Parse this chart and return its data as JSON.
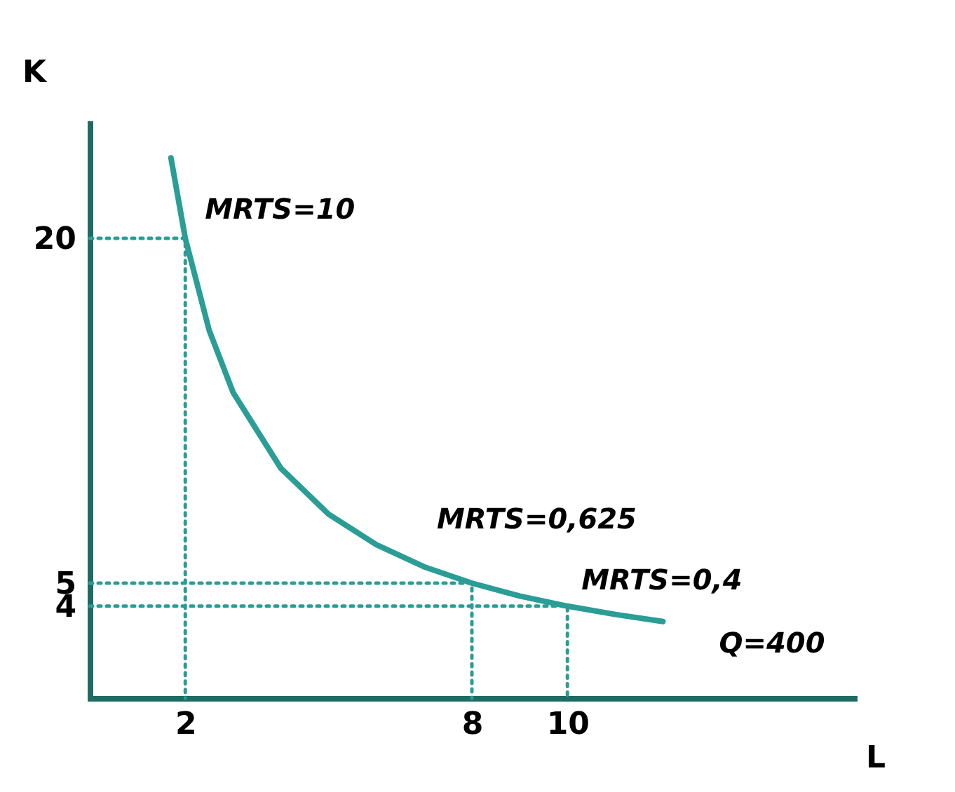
{
  "chart_data": {
    "type": "line",
    "xlabel": "L",
    "ylabel": "K",
    "xlim": [
      0,
      16
    ],
    "ylim": [
      0,
      25
    ],
    "xticks": [
      2,
      8,
      10
    ],
    "yticks": [
      4,
      5,
      20
    ],
    "grid": false,
    "marker": "none",
    "series": [
      {
        "color": "#2a9d96",
        "line_style": "solid",
        "x": [
          1.7,
          2,
          2.5,
          3,
          4,
          5,
          6,
          7,
          8,
          9,
          10,
          11,
          12
        ],
        "values": [
          23.5,
          20,
          16,
          13.3,
          10,
          8,
          6.67,
          5.71,
          5,
          4.44,
          4,
          3.64,
          3.33
        ]
      },
      {
        "color": "#2a9d96",
        "line_style": "dotted",
        "x": [
          0,
          2,
          2
        ],
        "values": [
          20,
          20,
          0
        ]
      },
      {
        "color": "#2a9d96",
        "line_style": "dotted",
        "x": [
          0,
          8,
          8
        ],
        "values": [
          5,
          5,
          0
        ]
      },
      {
        "color": "#2a9d96",
        "line_style": "dotted",
        "x": [
          0,
          10,
          10
        ],
        "values": [
          4,
          4,
          0
        ]
      }
    ],
    "annotations": [
      {
        "text": "MRTS=10",
        "x": 2,
        "y": 20
      },
      {
        "text": "MRTS=0,625",
        "x": 8,
        "y": 5
      },
      {
        "text": "MRTS=0,4",
        "x": 10,
        "y": 4
      },
      {
        "text": "Q=400",
        "x": 12,
        "y": 3.33
      }
    ]
  }
}
